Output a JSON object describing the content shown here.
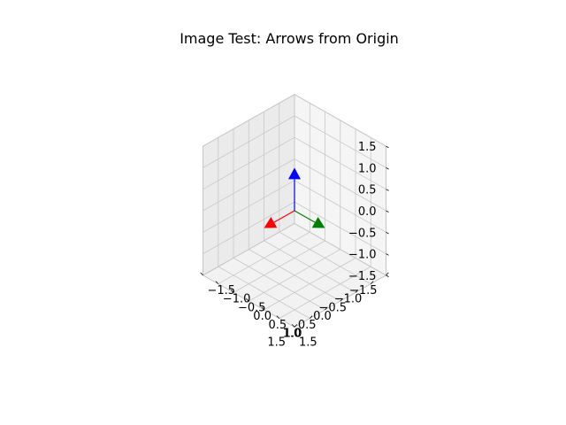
{
  "chart_data": {
    "type": "3d-quiver",
    "title": "Image Test: Arrows from Origin",
    "xlabel": "",
    "ylabel": "",
    "zlabel": "",
    "xlim": [
      -1.5,
      1.5
    ],
    "ylim": [
      -1.5,
      1.5
    ],
    "zlim": [
      -1.5,
      1.5
    ],
    "x_ticks": [
      -1.5,
      -1.0,
      -0.5,
      0.0,
      0.5,
      1.0,
      1.5
    ],
    "y_ticks": [
      -1.5,
      -1.0,
      -0.5,
      0.0,
      0.5,
      1.0,
      1.5
    ],
    "z_ticks": [
      -1.5,
      -1.0,
      -0.5,
      0.0,
      0.5,
      1.0,
      1.5
    ],
    "x_tick_labels": [
      "−1.5",
      "−1.0",
      "−0.5",
      "0.0",
      "0.5",
      "1.0",
      "1.5"
    ],
    "y_tick_labels": [
      "−1.5",
      "−1.0",
      "−0.5",
      "0.0",
      "0.5",
      "1.0",
      "1.5"
    ],
    "z_tick_labels": [
      "−1.5",
      "−1.0",
      "−0.5",
      "0.0",
      "0.5",
      "1.0",
      "1.5"
    ],
    "grid": true,
    "arrows": [
      {
        "from": [
          0,
          0,
          0
        ],
        "to": [
          1,
          0,
          0
        ],
        "color": "#ff0000"
      },
      {
        "from": [
          0,
          0,
          0
        ],
        "to": [
          0,
          1,
          0
        ],
        "color": "#008000"
      },
      {
        "from": [
          0,
          0,
          0
        ],
        "to": [
          0,
          0,
          1
        ],
        "color": "#0000ff"
      }
    ],
    "colors": {
      "pane_left": "#ebebeb",
      "pane_right": "#f5f5f5",
      "pane_floor": "#f2f2f2",
      "grid": "#c8c8c8",
      "pane_edge": "#b0b0b0"
    }
  }
}
